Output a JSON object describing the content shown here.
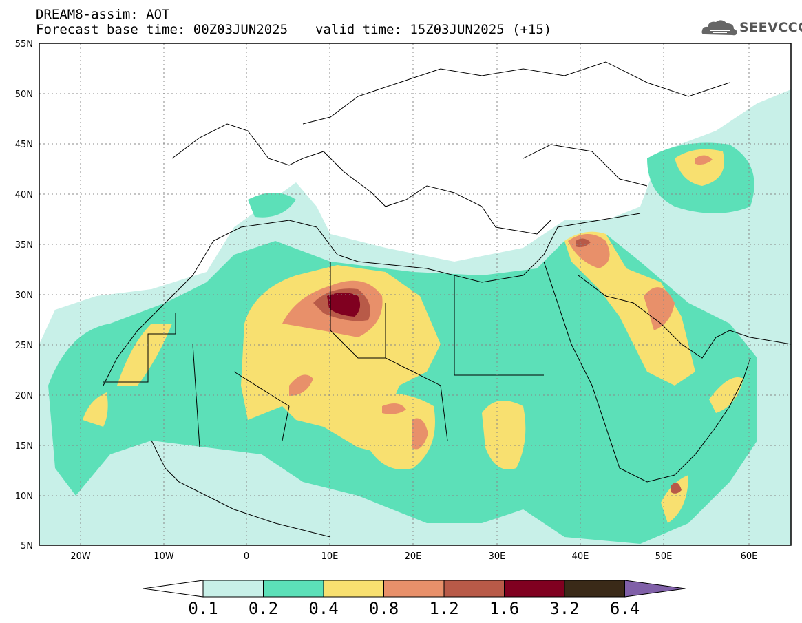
{
  "header": {
    "title": "DREAM8-assim: AOT",
    "base_time": "Forecast base time: 00Z03JUN2025",
    "valid_time": "valid time: 15Z03JUN2025 (+15)"
  },
  "logo": {
    "text": "SEEVCCC",
    "icon": "cloud-icon"
  },
  "map": {
    "variable": "AOT",
    "lon_range": [
      -25,
      65
    ],
    "lat_range": [
      5,
      55
    ],
    "x_ticks": [
      "20W",
      "10W",
      "0",
      "10E",
      "20E",
      "30E",
      "40E",
      "50E",
      "60E"
    ],
    "y_ticks": [
      "55N",
      "50N",
      "45N",
      "40N",
      "35N",
      "30N",
      "25N",
      "20N",
      "15N",
      "10N",
      "5N"
    ],
    "grid": "dotted"
  },
  "colorbar": {
    "levels": [
      "0.1",
      "0.2",
      "0.4",
      "0.8",
      "1.2",
      "1.6",
      "3.2",
      "6.4"
    ],
    "colors": [
      "#c8f0e8",
      "#5ce0b8",
      "#f8e070",
      "#e8906a",
      "#b85a48",
      "#800020",
      "#3a2a18",
      "#8060a8"
    ],
    "under_color": "#ffffff"
  }
}
